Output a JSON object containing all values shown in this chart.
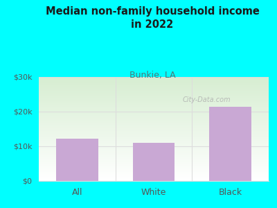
{
  "title": "Median non-family household income\nin 2022",
  "subtitle": "Bunkie, LA",
  "categories": [
    "All",
    "White",
    "Black"
  ],
  "values": [
    12200,
    11000,
    21500
  ],
  "bar_color": "#C9A8D4",
  "background_color": "#00FFFF",
  "title_color": "#1a1a1a",
  "subtitle_color": "#4a7a7a",
  "tick_color": "#555555",
  "ylim": [
    0,
    30000
  ],
  "yticks": [
    0,
    10000,
    20000,
    30000
  ],
  "ytick_labels": [
    "$0",
    "$10k",
    "$20k",
    "$30k"
  ],
  "watermark": "City-Data.com",
  "grid_color": "#dddddd",
  "plot_bg_green": [
    0.84,
    0.93,
    0.82
  ],
  "plot_bg_white": [
    1.0,
    1.0,
    1.0
  ]
}
